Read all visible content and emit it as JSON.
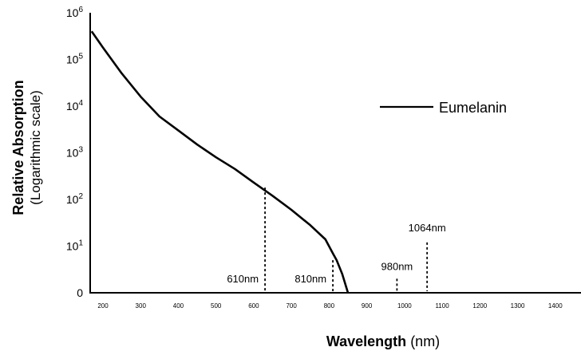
{
  "chart_data": {
    "type": "line",
    "title": "",
    "ylabel": "Relative Absorption",
    "ylabel_sub": "(Logarithmic scale)",
    "xlabel": "Wavelength",
    "xlabel_unit": "(nm)",
    "y_scale": "log",
    "ylim": [
      1,
      1000000
    ],
    "y_ticks": [
      {
        "value": 1,
        "label": "0"
      },
      {
        "value": 10,
        "base": "10",
        "exp": "1"
      },
      {
        "value": 100,
        "base": "10",
        "exp": "2"
      },
      {
        "value": 1000,
        "base": "10",
        "exp": "3"
      },
      {
        "value": 10000,
        "base": "10",
        "exp": "4"
      },
      {
        "value": 100000,
        "base": "10",
        "exp": "5"
      },
      {
        "value": 1000000,
        "base": "10",
        "exp": "6"
      }
    ],
    "x_ticks": [
      200,
      300,
      400,
      500,
      600,
      700,
      800,
      900,
      1000,
      1100,
      1200,
      1300,
      1400
    ],
    "grid": false,
    "legend_position": "right",
    "series": [
      {
        "name": "Eumelanin",
        "color": "#000000",
        "points": [
          [
            170,
            400000
          ],
          [
            200,
            180000
          ],
          [
            250,
            50000
          ],
          [
            300,
            16000
          ],
          [
            350,
            6000
          ],
          [
            400,
            3000
          ],
          [
            450,
            1500
          ],
          [
            500,
            800
          ],
          [
            550,
            450
          ],
          [
            600,
            230
          ],
          [
            650,
            120
          ],
          [
            700,
            60
          ],
          [
            750,
            28
          ],
          [
            790,
            14
          ],
          [
            810,
            7
          ],
          [
            820,
            5
          ],
          [
            835,
            2.5
          ],
          [
            850,
            1
          ]
        ]
      },
      {
        "name": "",
        "color": "#000000",
        "points": [
          [
            850,
            1
          ],
          [
            1400,
            1
          ]
        ]
      }
    ],
    "annotations": [
      {
        "label": "610nm",
        "x": 630,
        "line_top_value": 180
      },
      {
        "label": "810nm",
        "x": 810,
        "line_top_value": 5
      },
      {
        "label": "980nm",
        "x": 980,
        "line_top_value": 2
      },
      {
        "label": "1064nm",
        "x": 1060,
        "line_top_value": 12
      }
    ]
  }
}
